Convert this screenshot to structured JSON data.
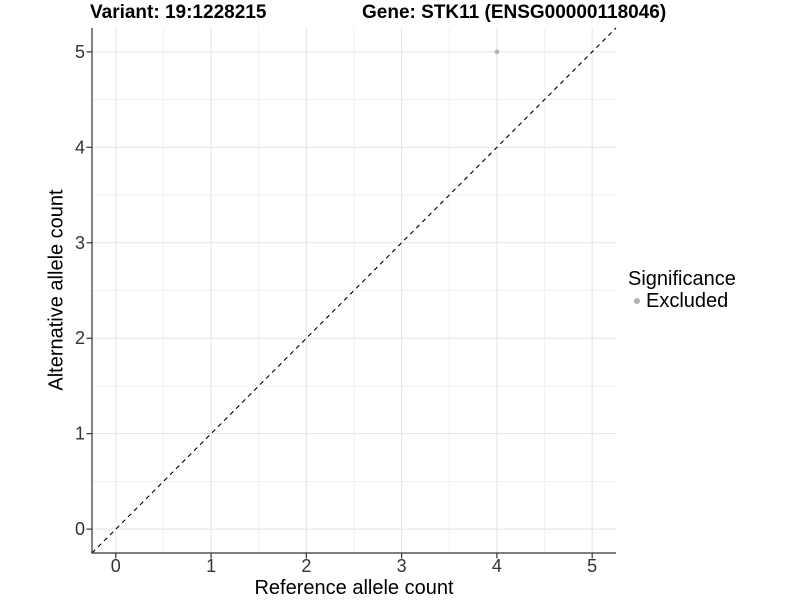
{
  "titles": {
    "variant": "Variant: 19:1228215",
    "gene": "Gene: STK11 (ENSG00000118046)"
  },
  "chart_data": {
    "type": "scatter",
    "xlabel": "Reference allele count",
    "ylabel": "Alternative allele count",
    "x_ticks": [
      0,
      1,
      2,
      3,
      4,
      5
    ],
    "y_ticks": [
      0,
      1,
      2,
      3,
      4,
      5
    ],
    "xlim": [
      -0.25,
      5.25
    ],
    "ylim": [
      -0.25,
      5.25
    ],
    "grid": {
      "major": true,
      "minor": true
    },
    "reference_line": {
      "kind": "identity",
      "dashed": true,
      "color": "#000000"
    },
    "series": [
      {
        "name": "Excluded",
        "color": "#B3B3B3",
        "points": [
          [
            4,
            5
          ]
        ]
      }
    ],
    "legend": {
      "title": "Significance",
      "position": "right",
      "entries": [
        {
          "label": "Excluded",
          "color": "#B0B0B0"
        }
      ]
    }
  },
  "colors": {
    "grid_major": "#E3E3E3",
    "grid_minor": "#F1F1F1",
    "axis": "#333333",
    "tick_label": "#333333",
    "background": "#FFFFFF"
  }
}
